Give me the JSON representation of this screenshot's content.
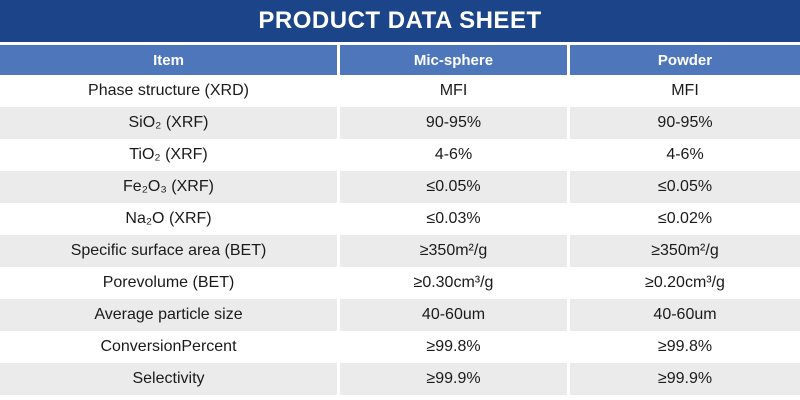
{
  "title": "PRODUCT DATA SHEET",
  "colors": {
    "title_bar": "#1C4488",
    "header_row": "#4D76BB",
    "alt_row": "#EBEBEB",
    "body_text": "#1A1A1A"
  },
  "table": {
    "columns": [
      "Item",
      "Mic-sphere",
      "Powder"
    ],
    "rows": [
      {
        "item": "Phase structure (XRD)",
        "mic_sphere": "MFI",
        "powder": "MFI"
      },
      {
        "item": "SiO₂ (XRF)",
        "mic_sphere": "90-95%",
        "powder": "90-95%"
      },
      {
        "item": "TiO₂ (XRF)",
        "mic_sphere": "4-6%",
        "powder": "4-6%"
      },
      {
        "item": "Fe₂O₃ (XRF)",
        "mic_sphere": "≤0.05%",
        "powder": "≤0.05%"
      },
      {
        "item": "Na₂O (XRF)",
        "mic_sphere": "≤0.03%",
        "powder": "≤0.02%"
      },
      {
        "item": "Specific surface area (BET)",
        "mic_sphere": "≥350m²/g",
        "powder": "≥350m²/g"
      },
      {
        "item": "Porevolume (BET)",
        "mic_sphere": "≥0.30cm³/g",
        "powder": "≥0.20cm³/g"
      },
      {
        "item": "Average particle size",
        "mic_sphere": "40-60um",
        "powder": "40-60um"
      },
      {
        "item": "ConversionPercent",
        "mic_sphere": "≥99.8%",
        "powder": "≥99.8%"
      },
      {
        "item": "Selectivity",
        "mic_sphere": "≥99.9%",
        "powder": "≥99.9%"
      }
    ]
  }
}
